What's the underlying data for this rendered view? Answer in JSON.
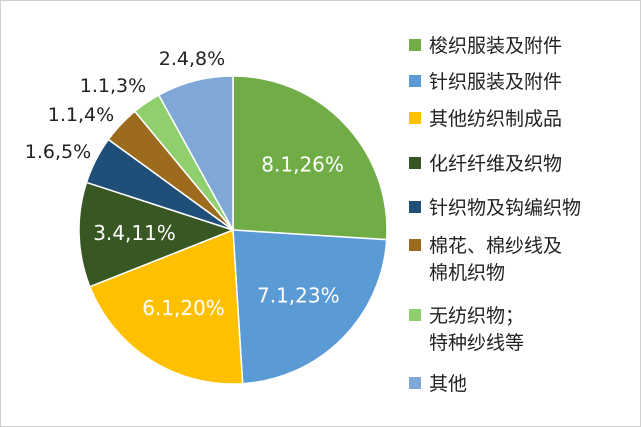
{
  "chart_data": {
    "type": "pie",
    "start_angle_deg": 0,
    "direction": "clockwise",
    "slices": [
      {
        "name": "梭织服装及附件",
        "value": 8.1,
        "percent": 26,
        "label": "8.1,26%",
        "color": "#70ad47",
        "label_placement": "inside"
      },
      {
        "name": "针织服装及附件",
        "value": 7.1,
        "percent": 23,
        "label": "7.1,23%",
        "color": "#5b9bd5",
        "label_placement": "inside"
      },
      {
        "name": "其他纺织制成品",
        "value": 6.1,
        "percent": 20,
        "label": "6.1,20%",
        "color": "#ffc000",
        "label_placement": "inside"
      },
      {
        "name": "化纤纤维及织物",
        "value": 3.4,
        "percent": 11,
        "label": "3.4,11%",
        "color": "#385723",
        "label_placement": "inside"
      },
      {
        "name": "针织物及钩编织物",
        "value": 1.6,
        "percent": 5,
        "label": "1.6,5%",
        "color": "#1f4e79",
        "label_placement": "outside"
      },
      {
        "name": "棉花、棉纱线及棉机织物",
        "value": 1.1,
        "percent": 4,
        "label": "1.1,4%",
        "color": "#9c6b1e",
        "label_placement": "outside"
      },
      {
        "name": "无纺织物；特种纱线等",
        "value": 1.1,
        "percent": 3,
        "label": "1.1,3%",
        "color": "#8fcf6e",
        "label_placement": "outside"
      },
      {
        "name": "其他",
        "value": 2.4,
        "percent": 8,
        "label": "2.4,8%",
        "color": "#7fa8d6",
        "label_placement": "outside"
      }
    ],
    "legend": {
      "position": "right",
      "entries": [
        [
          "梭织服装及附件"
        ],
        [
          "针织服装及附件"
        ],
        [
          "其他纺织制成品"
        ],
        [
          "化纤纤维及织物"
        ],
        [
          "针织物及钩编织物"
        ],
        [
          "棉花、棉纱线及",
          "棉机织物"
        ],
        [
          "无纺织物；",
          "特种纱线等"
        ],
        [
          "其他"
        ]
      ]
    }
  }
}
